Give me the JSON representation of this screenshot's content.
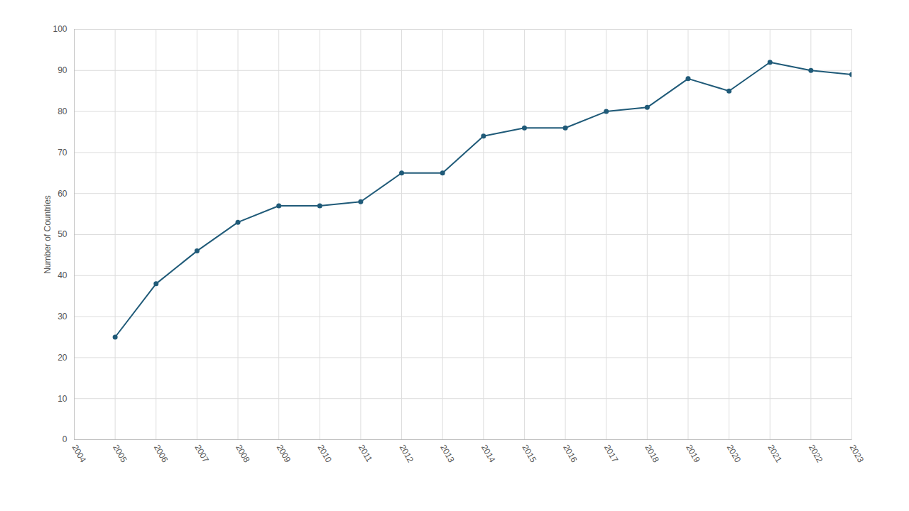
{
  "chart_data": {
    "type": "line",
    "y_label": "Number of Countries",
    "x": [
      2005,
      2006,
      2007,
      2008,
      2009,
      2010,
      2011,
      2012,
      2013,
      2014,
      2015,
      2016,
      2017,
      2018,
      2019,
      2020,
      2021,
      2022,
      2023
    ],
    "values": [
      25,
      38,
      46,
      53,
      57,
      57,
      58,
      65,
      65,
      74,
      76,
      76,
      80,
      81,
      88,
      85,
      92,
      90,
      89
    ],
    "color": "#1f5a78",
    "marker": "circle",
    "xlim": [
      2004,
      2023
    ],
    "xticks": [
      2004,
      2005,
      2006,
      2007,
      2008,
      2009,
      2010,
      2011,
      2012,
      2013,
      2014,
      2015,
      2016,
      2017,
      2018,
      2019,
      2020,
      2021,
      2022,
      2023
    ],
    "ylim": [
      0,
      100
    ],
    "yticks": [
      0,
      10,
      20,
      30,
      40,
      50,
      60,
      70,
      80,
      90,
      100
    ],
    "grid": true
  }
}
